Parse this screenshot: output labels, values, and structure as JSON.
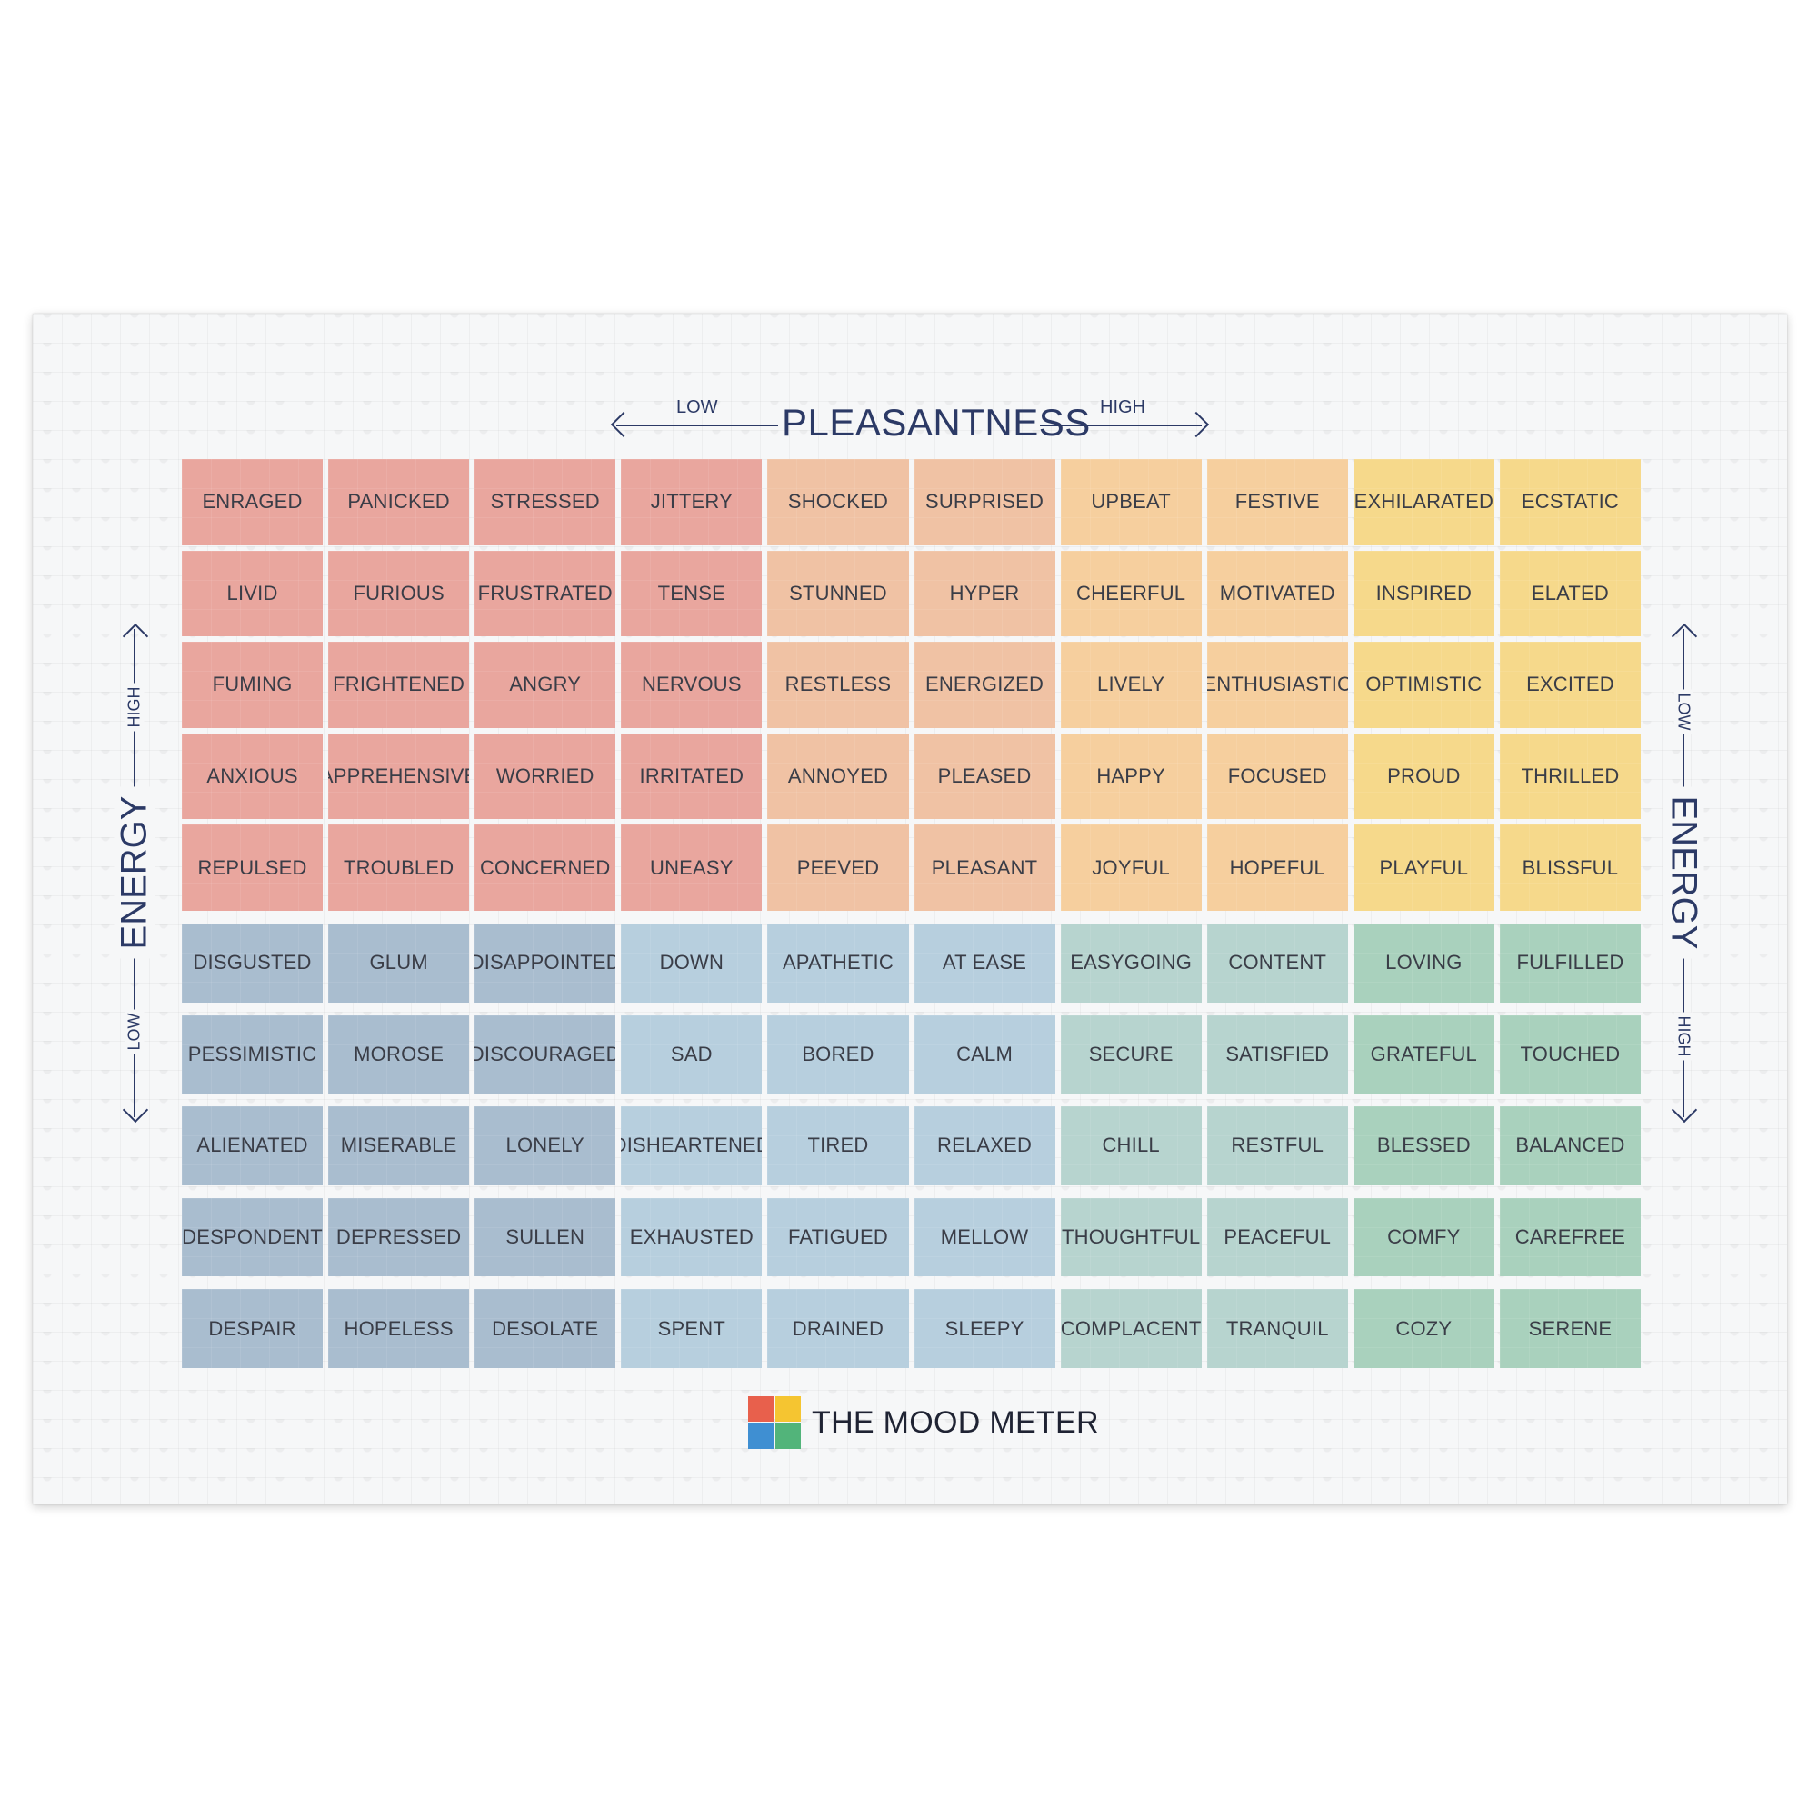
{
  "header": {
    "title": "PLEASANTNESS",
    "low": "LOW",
    "high": "HIGH"
  },
  "energy_left": {
    "title": "ENERGY",
    "high": "HIGH",
    "low": "LOW"
  },
  "energy_right": {
    "title": "ENERGY",
    "low": "LOW",
    "high": "HIGH"
  },
  "colors": {
    "red": "#e9a69e",
    "orange": "#f0c2a4",
    "peach": "#f6cf9e",
    "yellow": "#f6d98b",
    "blue_dark": "#a9bdcf",
    "blue": "#b7cfde",
    "teal": "#b7d4cf",
    "green": "#a9d1bd"
  },
  "grid": {
    "rows": [
      [
        "ENRAGED",
        "PANICKED",
        "STRESSED",
        "JITTERY",
        "SHOCKED",
        "SURPRISED",
        "UPBEAT",
        "FESTIVE",
        "EXHILARATED",
        "ECSTATIC"
      ],
      [
        "LIVID",
        "FURIOUS",
        "FRUSTRATED",
        "TENSE",
        "STUNNED",
        "HYPER",
        "CHEERFUL",
        "MOTIVATED",
        "INSPIRED",
        "ELATED"
      ],
      [
        "FUMING",
        "FRIGHTENED",
        "ANGRY",
        "NERVOUS",
        "RESTLESS",
        "ENERGIZED",
        "LIVELY",
        "ENTHUSIASTIC",
        "OPTIMISTIC",
        "EXCITED"
      ],
      [
        "ANXIOUS",
        "APPREHENSIVE",
        "WORRIED",
        "IRRITATED",
        "ANNOYED",
        "PLEASED",
        "HAPPY",
        "FOCUSED",
        "PROUD",
        "THRILLED"
      ],
      [
        "REPULSED",
        "TROUBLED",
        "CONCERNED",
        "UNEASY",
        "PEEVED",
        "PLEASANT",
        "JOYFUL",
        "HOPEFUL",
        "PLAYFUL",
        "BLISSFUL"
      ],
      [
        "DISGUSTED",
        "GLUM",
        "DISAPPOINTED",
        "DOWN",
        "APATHETIC",
        "AT EASE",
        "EASYGOING",
        "CONTENT",
        "LOVING",
        "FULFILLED"
      ],
      [
        "PESSIMISTIC",
        "MOROSE",
        "DISCOURAGED",
        "SAD",
        "BORED",
        "CALM",
        "SECURE",
        "SATISFIED",
        "GRATEFUL",
        "TOUCHED"
      ],
      [
        "ALIENATED",
        "MISERABLE",
        "LONELY",
        "DISHEARTENED",
        "TIRED",
        "RELAXED",
        "CHILL",
        "RESTFUL",
        "BLESSED",
        "BALANCED"
      ],
      [
        "DESPONDENT",
        "DEPRESSED",
        "SULLEN",
        "EXHAUSTED",
        "FATIGUED",
        "MELLOW",
        "THOUGHTFUL",
        "PEACEFUL",
        "COMFY",
        "CAREFREE"
      ],
      [
        "DESPAIR",
        "HOPELESS",
        "DESOLATE",
        "SPENT",
        "DRAINED",
        "SLEEPY",
        "COMPLACENT",
        "TRANQUIL",
        "COZY",
        "SERENE"
      ]
    ]
  },
  "logo": {
    "text": "THE MOOD METER"
  }
}
